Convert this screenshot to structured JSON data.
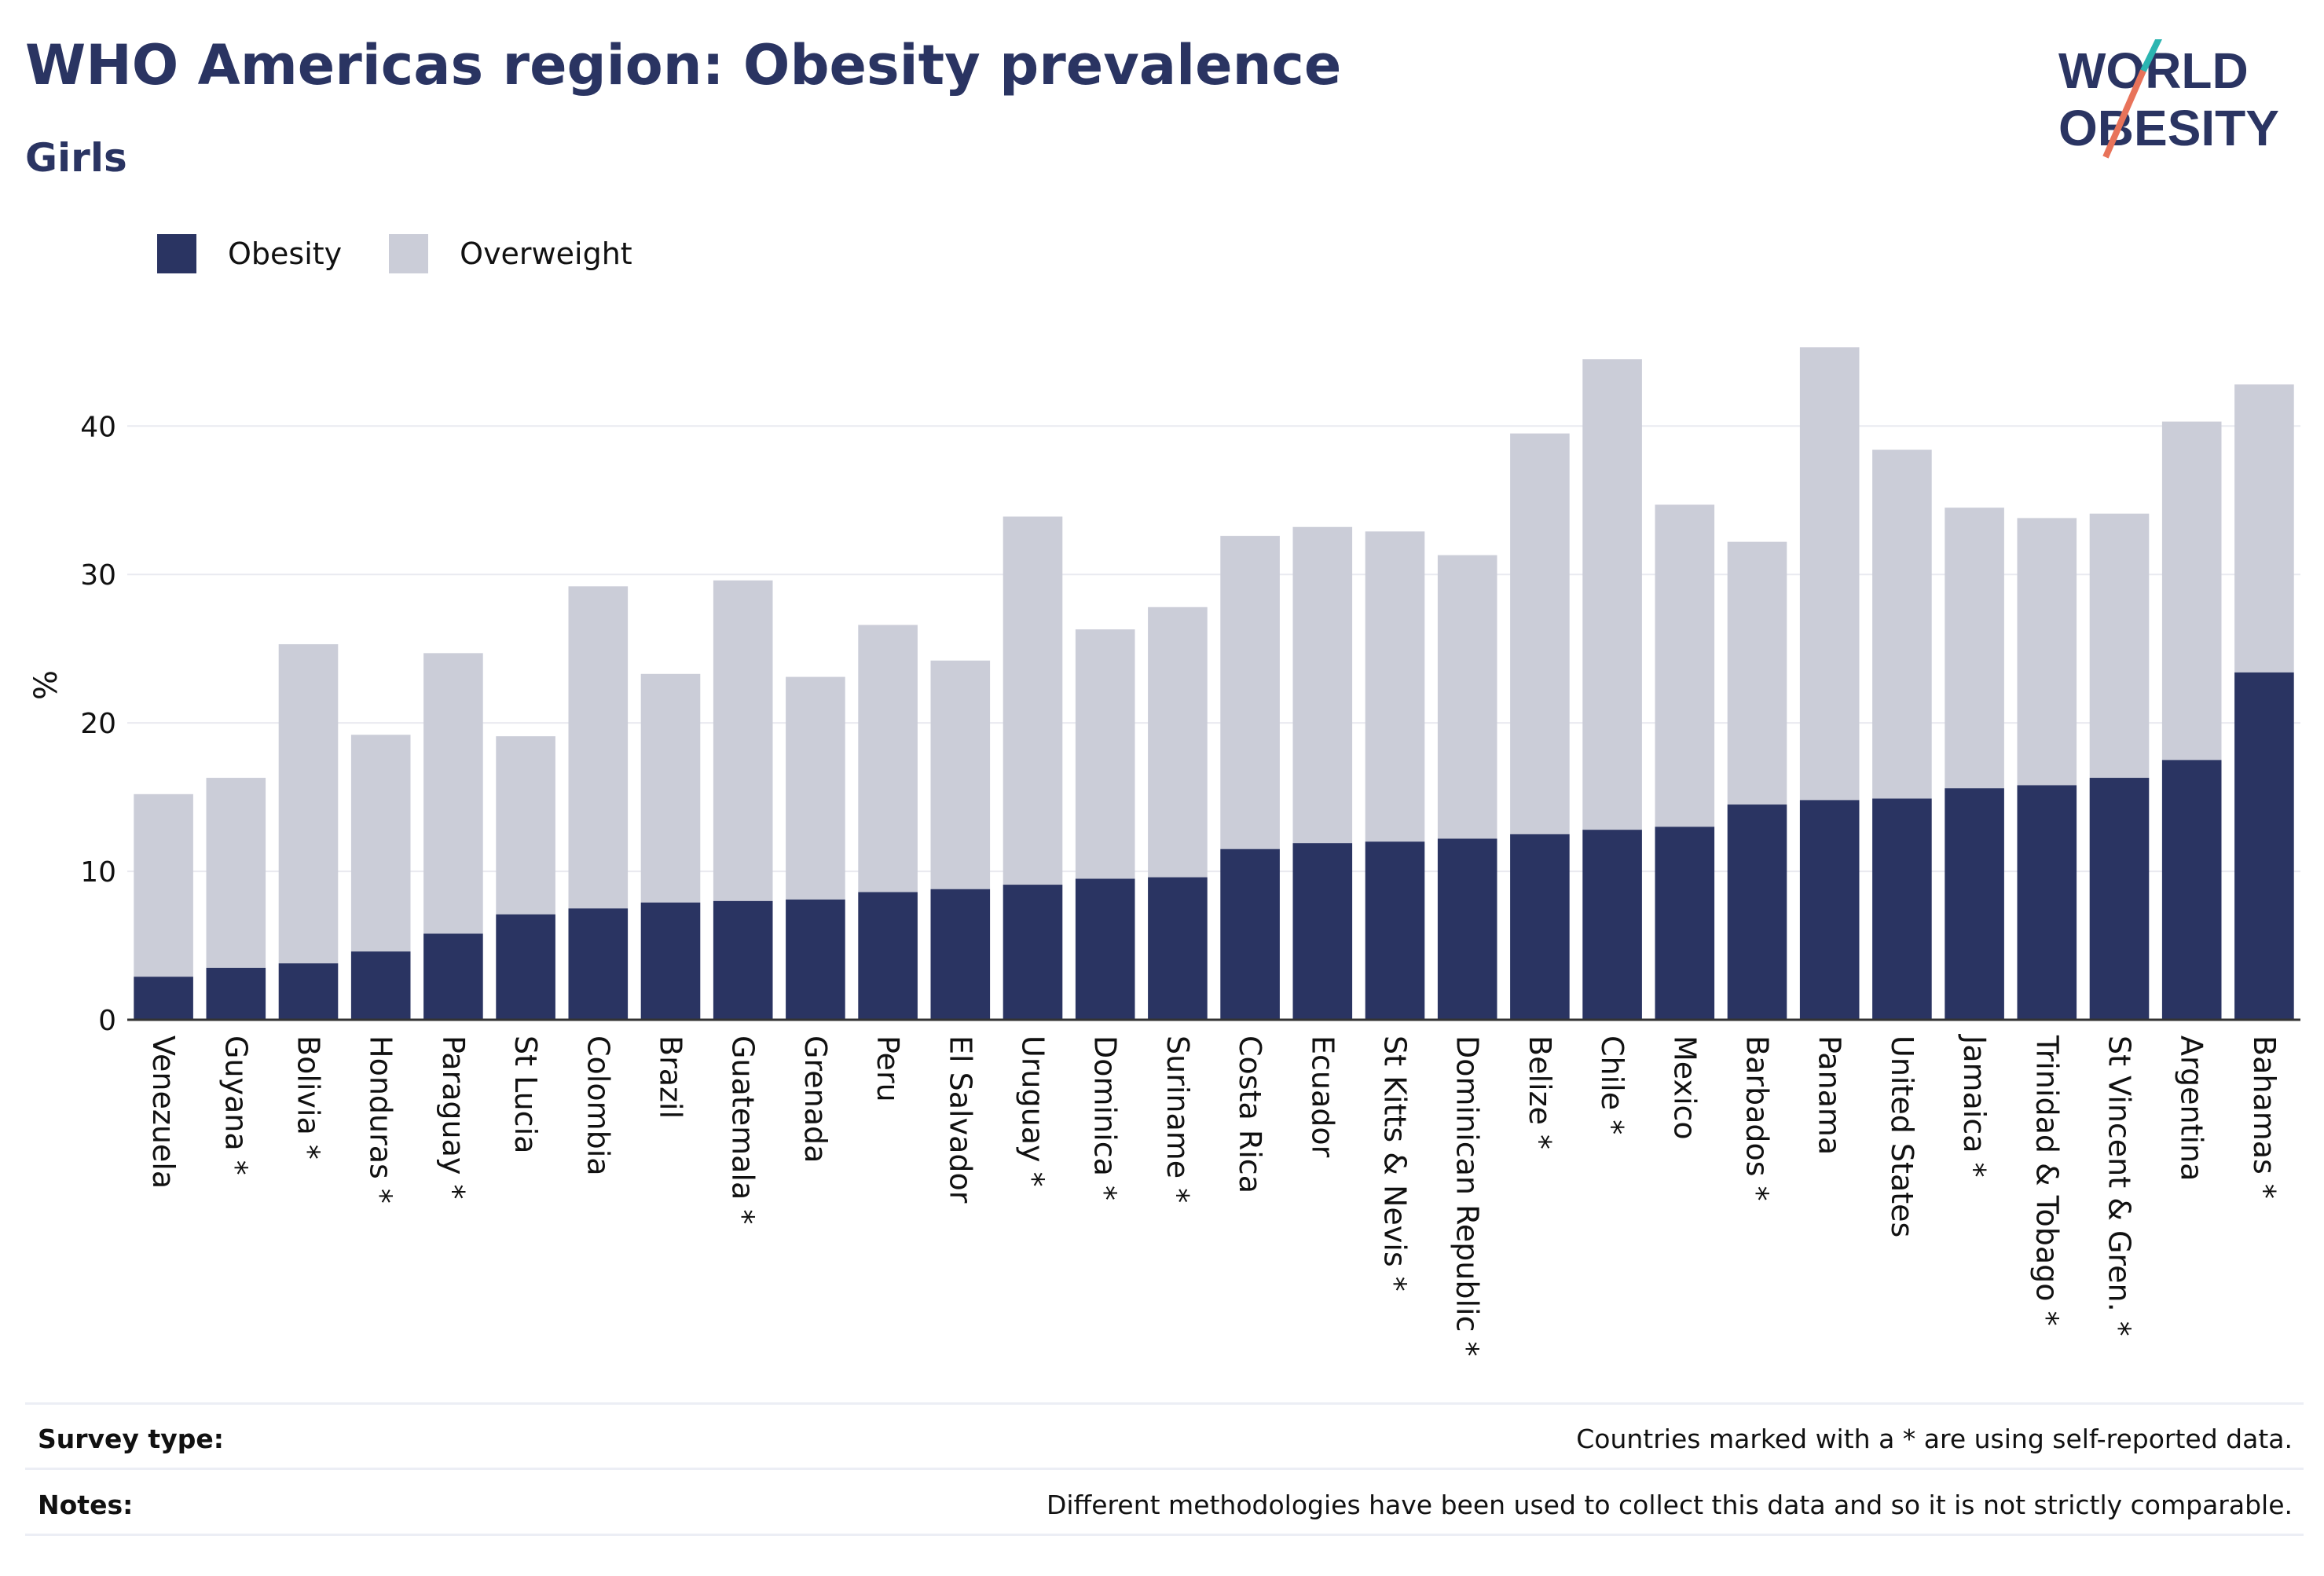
{
  "title": "WHO Americas region: Obesity prevalence",
  "subtitle": "Girls",
  "logo": {
    "line1": "WORLD",
    "line2": "OBESITY",
    "accent": "#e8735a",
    "accent2": "#2bb5b1"
  },
  "legend": [
    {
      "label": "Obesity",
      "color": "#2a3462"
    },
    {
      "label": "Overweight",
      "color": "#cbcdd8"
    }
  ],
  "footer": {
    "survey_label": "Survey type:",
    "survey_text": "Countries marked with a * are using self-reported data.",
    "notes_label": "Notes:",
    "notes_text": "Different methodologies have been used to collect this data and so it is not strictly comparable."
  },
  "chart_data": {
    "type": "bar",
    "stacked": true,
    "ylabel": "%",
    "ylim": [
      0,
      47
    ],
    "yticks": [
      0,
      10,
      20,
      30,
      40
    ],
    "grid": true,
    "legend_position": "top-left",
    "categories": [
      "Venezuela",
      "Guyana *",
      "Bolivia *",
      "Honduras *",
      "Paraguay *",
      "St Lucia",
      "Colombia",
      "Brazil",
      "Guatemala *",
      "Grenada",
      "Peru",
      "El Salvador",
      "Uruguay *",
      "Dominica *",
      "Suriname *",
      "Costa Rica",
      "Ecuador",
      "St Kitts & Nevis *",
      "Dominican Republic *",
      "Belize *",
      "Chile *",
      "Mexico",
      "Barbados *",
      "Panama",
      "United States",
      "Jamaica *",
      "Trinidad & Tobago *",
      "St Vincent & Gren. *",
      "Argentina",
      "Bahamas *"
    ],
    "series": [
      {
        "name": "Obesity",
        "color": "#2a3462",
        "values": [
          2.9,
          3.5,
          3.8,
          4.6,
          5.8,
          7.1,
          7.5,
          7.9,
          8.0,
          8.1,
          8.6,
          8.8,
          9.1,
          9.5,
          9.6,
          11.5,
          11.9,
          12.0,
          12.2,
          12.5,
          12.8,
          13.0,
          14.5,
          14.8,
          14.9,
          15.6,
          15.8,
          16.3,
          17.5,
          23.4
        ]
      },
      {
        "name": "Overweight",
        "color": "#cbcdd8",
        "values": [
          12.3,
          12.8,
          21.5,
          14.6,
          18.9,
          12.0,
          21.7,
          15.4,
          21.6,
          15.0,
          18.0,
          15.4,
          24.8,
          16.8,
          18.2,
          21.1,
          21.3,
          20.9,
          19.1,
          27.0,
          31.7,
          21.7,
          17.7,
          30.5,
          23.5,
          18.9,
          18.0,
          17.8,
          22.8,
          19.4
        ]
      }
    ]
  }
}
